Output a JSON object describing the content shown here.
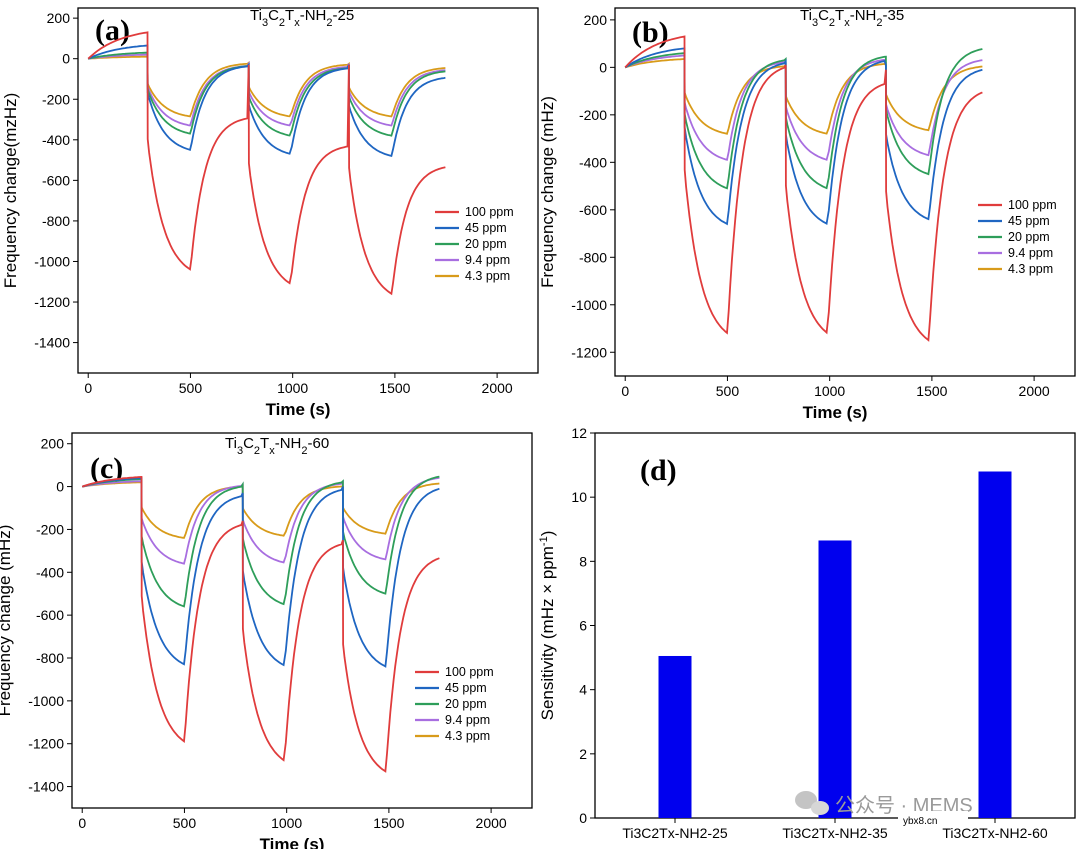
{
  "chart_data": [
    {
      "type": "line",
      "panel_label": "(a)",
      "title": "Ti3C2Tx-NH2-25",
      "xlabel": "Time (s)",
      "ylabel": "Frequency change(mzHz)",
      "xlim": [
        -50,
        2200
      ],
      "ylim": [
        -1550,
        250
      ],
      "xticks": [
        0,
        500,
        1000,
        1500,
        2000
      ],
      "yticks": [
        200,
        0,
        -200,
        -400,
        -600,
        -800,
        -1000,
        -1200,
        -1400
      ],
      "legend_position": "right-middle",
      "series": [
        {
          "name": "100 ppm",
          "color": "#e03c3c",
          "rise": [
            130,
            -30,
            -30
          ],
          "min": [
            -1040,
            -1110,
            -1160
          ],
          "recover": [
            -280,
            -420,
            -520
          ]
        },
        {
          "name": "45 ppm",
          "color": "#1f66c2",
          "rise": [
            65,
            -30,
            -30
          ],
          "min": [
            -450,
            -470,
            -480
          ],
          "recover": [
            -30,
            -40,
            -85
          ]
        },
        {
          "name": "20 ppm",
          "color": "#2e9e5a",
          "rise": [
            30,
            -30,
            -30
          ],
          "min": [
            -370,
            -380,
            -380
          ],
          "recover": [
            -30,
            -40,
            -55
          ]
        },
        {
          "name": "9.4 ppm",
          "color": "#a86ee0",
          "rise": [
            20,
            -25,
            -25
          ],
          "min": [
            -330,
            -330,
            -330
          ],
          "recover": [
            -30,
            -35,
            -50
          ]
        },
        {
          "name": "4.3 ppm",
          "color": "#d89b1a",
          "rise": [
            10,
            -20,
            -25
          ],
          "min": [
            -285,
            -285,
            -285
          ],
          "recover": [
            -20,
            -25,
            -40
          ]
        }
      ]
    },
    {
      "type": "line",
      "panel_label": "(b)",
      "title": "Ti3C2Tx-NH2-35",
      "xlabel": "Time (s)",
      "ylabel": "Frequency change (mHz)",
      "xlim": [
        -50,
        2200
      ],
      "ylim": [
        -1300,
        250
      ],
      "xticks": [
        0,
        500,
        1000,
        1500,
        2000
      ],
      "yticks": [
        200,
        0,
        -200,
        -400,
        -600,
        -800,
        -1000,
        -1200
      ],
      "legend_position": "right-middle",
      "series": [
        {
          "name": "100 ppm",
          "color": "#e03c3c",
          "rise": [
            130,
            10,
            -10
          ],
          "min": [
            -1120,
            -1120,
            -1150
          ],
          "recover": [
            20,
            -50,
            -80
          ]
        },
        {
          "name": "45 ppm",
          "color": "#1f66c2",
          "rise": [
            80,
            25,
            10
          ],
          "min": [
            -660,
            -660,
            -640
          ],
          "recover": [
            30,
            40,
            5
          ]
        },
        {
          "name": "20 ppm",
          "color": "#2e9e5a",
          "rise": [
            60,
            35,
            45
          ],
          "min": [
            -510,
            -510,
            -450
          ],
          "recover": [
            40,
            55,
            90
          ]
        },
        {
          "name": "9.4 ppm",
          "color": "#a86ee0",
          "rise": [
            50,
            20,
            20
          ],
          "min": [
            -390,
            -390,
            -370
          ],
          "recover": [
            30,
            40,
            40
          ]
        },
        {
          "name": "4.3 ppm",
          "color": "#d89b1a",
          "rise": [
            35,
            10,
            10
          ],
          "min": [
            -280,
            -280,
            -265
          ],
          "recover": [
            10,
            20,
            10
          ]
        }
      ]
    },
    {
      "type": "line",
      "panel_label": "(c)",
      "title": "Ti3C2Tx-NH2-60",
      "xlabel": "Time (s)",
      "ylabel": "Frequency change (mHz)",
      "xlim": [
        -50,
        2200
      ],
      "ylim": [
        -1500,
        250
      ],
      "xticks": [
        0,
        500,
        1000,
        1500,
        2000
      ],
      "yticks": [
        200,
        0,
        -200,
        -400,
        -600,
        -800,
        -1000,
        -1200,
        -1400
      ],
      "legend_position": "right-middle",
      "series": [
        {
          "name": "100 ppm",
          "color": "#e03c3c",
          "rise": [
            45,
            -160,
            -250
          ],
          "min": [
            -1190,
            -1280,
            -1330
          ],
          "recover": [
            -160,
            -250,
            -310
          ]
        },
        {
          "name": "45 ppm",
          "color": "#1f66c2",
          "rise": [
            40,
            -30,
            0
          ],
          "min": [
            -830,
            -835,
            -840
          ],
          "recover": [
            -30,
            0,
            10
          ]
        },
        {
          "name": "20 ppm",
          "color": "#2e9e5a",
          "rise": [
            35,
            10,
            25
          ],
          "min": [
            -560,
            -550,
            -500
          ],
          "recover": [
            10,
            30,
            60
          ]
        },
        {
          "name": "9.4 ppm",
          "color": "#a86ee0",
          "rise": [
            25,
            10,
            20
          ],
          "min": [
            -360,
            -355,
            -340
          ],
          "recover": [
            10,
            20,
            50
          ]
        },
        {
          "name": "4.3 ppm",
          "color": "#d89b1a",
          "rise": [
            20,
            5,
            0
          ],
          "min": [
            -240,
            -230,
            -220
          ],
          "recover": [
            5,
            5,
            20
          ]
        }
      ]
    },
    {
      "type": "bar",
      "panel_label": "(d)",
      "xlabel": "",
      "ylabel": "Sensitivity (mHz × ppm⁻¹)",
      "categories": [
        "Ti3C2Tx-NH2-25",
        "Ti3C2Tx-NH2-35",
        "Ti3C2Tx-NH2-60"
      ],
      "values": [
        5.05,
        8.65,
        10.8
      ],
      "ylim": [
        0,
        12
      ],
      "yticks": [
        0,
        2,
        4,
        6,
        8,
        10,
        12
      ],
      "bar_color": "#0000ee"
    }
  ],
  "watermark": {
    "text": "公众号 · MEMS",
    "site": "ybx8.cn"
  }
}
